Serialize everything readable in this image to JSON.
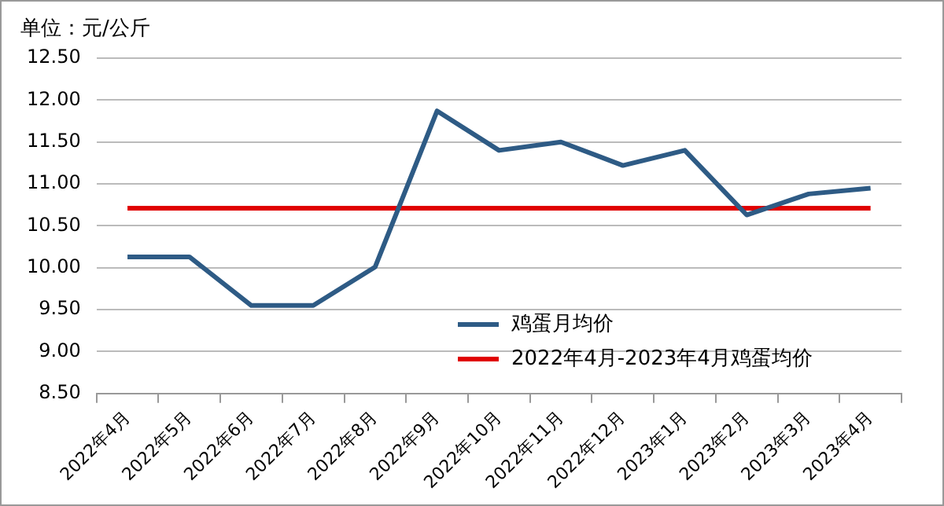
{
  "chart_data": {
    "type": "line",
    "ylabel": "单位：元/公斤",
    "categories": [
      "2022年4月",
      "2022年5月",
      "2022年6月",
      "2022年7月",
      "2022年8月",
      "2022年9月",
      "2022年10月",
      "2022年11月",
      "2022年12月",
      "2023年1月",
      "2023年2月",
      "2023年3月",
      "2023年4月"
    ],
    "series": [
      {
        "name": "鸡蛋月均价",
        "color": "#2e5b85",
        "values": [
          10.13,
          10.13,
          9.55,
          9.55,
          10.01,
          11.87,
          11.4,
          11.5,
          11.22,
          11.4,
          10.63,
          10.88,
          10.95
        ]
      },
      {
        "name": "2022年4月-2023年4月鸡蛋均价",
        "color": "#e00000",
        "values": [
          10.71,
          10.71,
          10.71,
          10.71,
          10.71,
          10.71,
          10.71,
          10.71,
          10.71,
          10.71,
          10.71,
          10.71,
          10.71
        ]
      }
    ],
    "ylim": [
      8.5,
      12.5
    ],
    "yticks": [
      {
        "value": 8.5,
        "label": "8.50"
      },
      {
        "value": 9,
        "label": "9.00"
      },
      {
        "value": 9.5,
        "label": "9.50"
      },
      {
        "value": 10,
        "label": "10.00"
      },
      {
        "value": 10.5,
        "label": "10.50"
      },
      {
        "value": 11,
        "label": "11.00"
      },
      {
        "value": 11.5,
        "label": "11.50"
      },
      {
        "value": 12,
        "label": "12.00"
      },
      {
        "value": 12.5,
        "label": "12.50"
      }
    ],
    "grid": "y",
    "legend": "bottom right",
    "marker": "none",
    "line_style": "solid"
  }
}
